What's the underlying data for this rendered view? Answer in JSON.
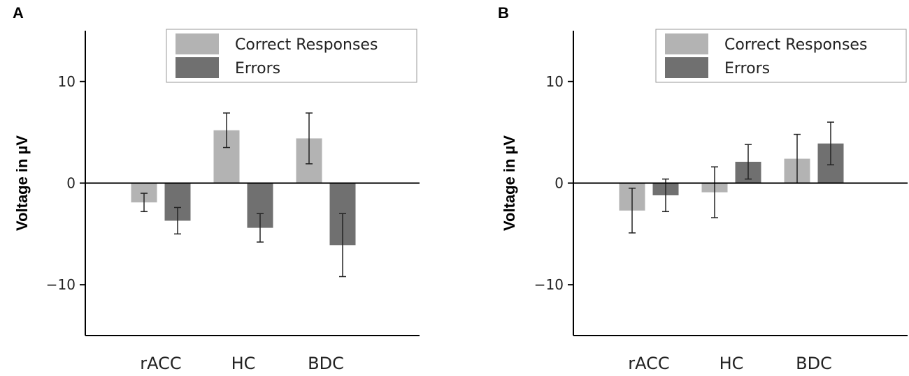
{
  "chart_data": [
    {
      "type": "bar",
      "panel": "A",
      "ylabel": "Voltage in µV",
      "ylim": [
        -15,
        15
      ],
      "yticks": [
        10,
        0,
        -10
      ],
      "ytick_labels": [
        "10",
        "0",
        "−10"
      ],
      "categories": [
        "rACC",
        "HC",
        "BDC"
      ],
      "series": [
        {
          "name": "Correct Responses",
          "color": "#b3b3b3",
          "values": [
            -1.9,
            5.2,
            4.4
          ],
          "err": [
            0.9,
            1.7,
            2.5
          ]
        },
        {
          "name": "Errors",
          "color": "#707070",
          "values": [
            -3.7,
            -4.4,
            -6.1
          ],
          "err": [
            1.3,
            1.4,
            3.1
          ]
        }
      ],
      "legend": {
        "position": "top-right"
      }
    },
    {
      "type": "bar",
      "panel": "B",
      "ylabel": "Voltage in µV",
      "ylim": [
        -15,
        15
      ],
      "yticks": [
        10,
        0,
        -10
      ],
      "ytick_labels": [
        "10",
        "0",
        "−10"
      ],
      "categories": [
        "rACC",
        "HC",
        "BDC"
      ],
      "series": [
        {
          "name": "Correct Responses",
          "color": "#b3b3b3",
          "values": [
            -2.7,
            -0.9,
            2.4
          ],
          "err": [
            2.2,
            2.5,
            2.4
          ]
        },
        {
          "name": "Errors",
          "color": "#707070",
          "values": [
            -1.2,
            2.1,
            3.9
          ],
          "err": [
            1.6,
            1.7,
            2.1
          ]
        }
      ],
      "legend": {
        "position": "top-right"
      }
    }
  ]
}
